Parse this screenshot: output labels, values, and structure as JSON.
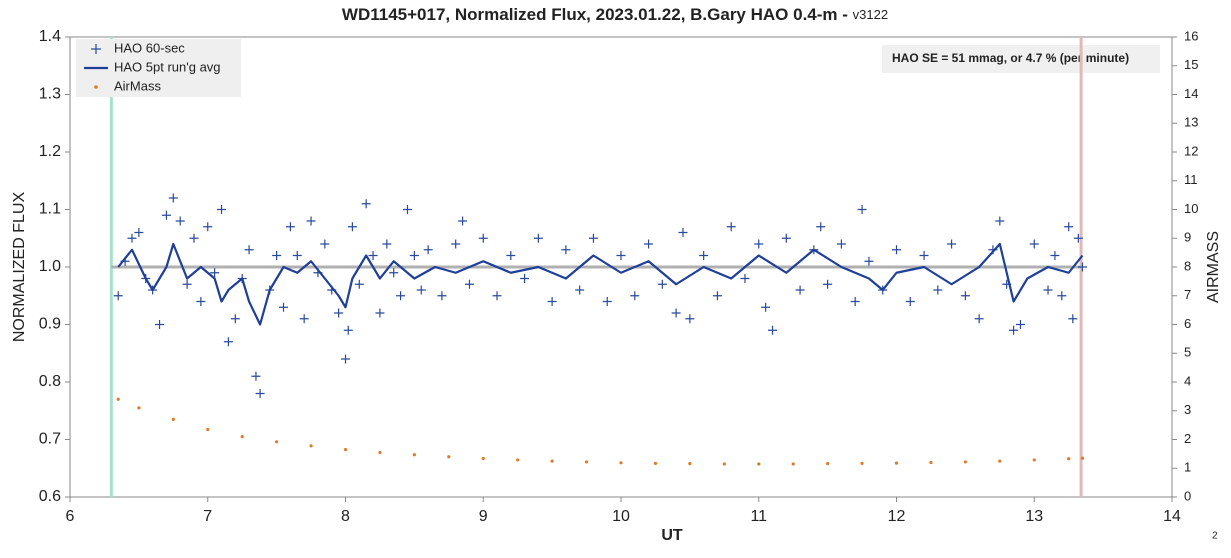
{
  "chart_data": {
    "type": "scatter",
    "title": "WD1145+017, Normalized Flux, 2023.01.22, B.Gary HAO 0.4-m - ",
    "title_version": "v3122",
    "xlabel": "UT",
    "ylabel": "NORMALIZED FLUX",
    "y2label": "AIRMASS",
    "annotation": "HAO SE =   51 mmag, or 4.7 % (per minute)",
    "page_label": "2",
    "xlim": [
      6,
      14
    ],
    "xticks": [
      6,
      7,
      8,
      9,
      10,
      11,
      12,
      13,
      14
    ],
    "ylim": [
      0.6,
      1.4
    ],
    "yticks": [
      0.6,
      0.7,
      0.8,
      0.9,
      {
        "value": 1,
        "label": "1.0"
      },
      1.1,
      1.2,
      1.3,
      1.4
    ],
    "y2lim": [
      0,
      16
    ],
    "y2ticks": [
      0,
      1,
      2,
      3,
      4,
      5,
      6,
      7,
      8,
      9,
      10,
      11,
      12,
      13,
      14,
      15,
      16
    ],
    "legend": "upper left",
    "reference_line": {
      "y": 1,
      "color": "#b0b0b0"
    },
    "vlines": [
      {
        "x": 6.3,
        "color": "#a8e0d0"
      },
      {
        "x": 13.34,
        "color": "#e0b8b8"
      }
    ],
    "series": [
      {
        "name": "HAO 60-sec",
        "kind": "plus",
        "color": "#2a4b9b",
        "x": [
          6.35,
          6.4,
          6.45,
          6.5,
          6.55,
          6.6,
          6.65,
          6.7,
          6.75,
          6.8,
          6.85,
          6.9,
          6.95,
          7.0,
          7.05,
          7.1,
          7.15,
          7.2,
          7.25,
          7.3,
          7.35,
          7.38,
          7.45,
          7.5,
          7.55,
          7.6,
          7.65,
          7.7,
          7.75,
          7.8,
          7.85,
          7.9,
          7.95,
          8.0,
          8.02,
          8.05,
          8.1,
          8.15,
          8.2,
          8.25,
          8.3,
          8.35,
          8.4,
          8.45,
          8.5,
          8.55,
          8.6,
          8.7,
          8.8,
          8.85,
          8.9,
          9.0,
          9.1,
          9.2,
          9.3,
          9.4,
          9.5,
          9.6,
          9.7,
          9.8,
          9.9,
          10.0,
          10.1,
          10.2,
          10.3,
          10.4,
          10.45,
          10.5,
          10.6,
          10.7,
          10.8,
          10.9,
          11.0,
          11.05,
          11.1,
          11.2,
          11.3,
          11.4,
          11.45,
          11.5,
          11.6,
          11.7,
          11.75,
          11.8,
          11.9,
          12.0,
          12.1,
          12.2,
          12.3,
          12.4,
          12.5,
          12.6,
          12.7,
          12.75,
          12.8,
          12.85,
          12.9,
          13.0,
          13.1,
          13.15,
          13.2,
          13.25,
          13.28,
          13.32,
          13.35
        ],
        "values": [
          0.95,
          1.01,
          1.05,
          1.06,
          0.98,
          0.96,
          0.9,
          1.09,
          1.12,
          1.08,
          0.97,
          1.05,
          0.94,
          1.07,
          0.99,
          1.1,
          0.87,
          0.91,
          0.98,
          1.03,
          0.81,
          0.78,
          0.96,
          1.02,
          0.93,
          1.07,
          1.02,
          0.91,
          1.08,
          0.99,
          1.04,
          0.96,
          0.92,
          0.84,
          0.89,
          1.07,
          0.97,
          1.11,
          1.02,
          0.92,
          1.04,
          0.99,
          0.95,
          1.1,
          1.02,
          0.96,
          1.03,
          0.95,
          1.04,
          1.08,
          0.97,
          1.05,
          0.95,
          1.02,
          0.98,
          1.05,
          0.94,
          1.03,
          0.96,
          1.05,
          0.94,
          1.02,
          0.95,
          1.04,
          0.97,
          0.92,
          1.06,
          0.91,
          1.02,
          0.95,
          1.07,
          0.98,
          1.04,
          0.93,
          0.89,
          1.05,
          0.96,
          1.03,
          1.07,
          0.97,
          1.04,
          0.94,
          1.1,
          1.01,
          0.96,
          1.03,
          0.94,
          1.02,
          0.96,
          1.04,
          0.95,
          0.91,
          1.03,
          1.08,
          0.97,
          0.89,
          0.9,
          1.04,
          0.96,
          1.02,
          0.95,
          1.07,
          0.91,
          1.05,
          1.0
        ]
      },
      {
        "name": "HAO 5pt run'g avg",
        "kind": "line",
        "color": "#1f3f99",
        "x": [
          6.35,
          6.45,
          6.55,
          6.6,
          6.7,
          6.75,
          6.85,
          6.95,
          7.05,
          7.1,
          7.15,
          7.25,
          7.3,
          7.38,
          7.45,
          7.55,
          7.65,
          7.75,
          7.85,
          7.95,
          8.0,
          8.05,
          8.15,
          8.25,
          8.35,
          8.5,
          8.65,
          8.8,
          9.0,
          9.2,
          9.4,
          9.6,
          9.8,
          10.0,
          10.2,
          10.4,
          10.6,
          10.8,
          11.0,
          11.2,
          11.4,
          11.6,
          11.8,
          11.9,
          12.0,
          12.2,
          12.4,
          12.6,
          12.75,
          12.85,
          12.95,
          13.1,
          13.25,
          13.35
        ],
        "values": [
          1.0,
          1.03,
          0.98,
          0.96,
          1.0,
          1.04,
          0.98,
          1.0,
          0.98,
          0.94,
          0.96,
          0.98,
          0.94,
          0.9,
          0.96,
          1.0,
          0.99,
          1.01,
          0.98,
          0.95,
          0.93,
          0.98,
          1.02,
          0.98,
          1.01,
          0.98,
          1.0,
          0.99,
          1.01,
          0.99,
          1.0,
          0.98,
          1.02,
          0.99,
          1.01,
          0.97,
          1.0,
          0.98,
          1.02,
          0.99,
          1.03,
          1.0,
          0.98,
          0.96,
          0.99,
          1.0,
          0.97,
          1.0,
          1.04,
          0.94,
          0.98,
          1.0,
          0.99,
          1.02
        ]
      },
      {
        "name": "AirMass",
        "kind": "dots",
        "color": "#e07a2a",
        "axis": "y2",
        "x": [
          6.35,
          6.5,
          6.75,
          7,
          7.25,
          7.5,
          7.75,
          8,
          8.25,
          8.5,
          8.75,
          9,
          9.25,
          9.5,
          9.75,
          10,
          10.25,
          10.5,
          10.75,
          11,
          11.25,
          11.5,
          11.75,
          12,
          12.25,
          12.5,
          12.75,
          13,
          13.25,
          13.35
        ],
        "values": [
          3.4,
          3.1,
          2.7,
          2.35,
          2.1,
          1.92,
          1.78,
          1.65,
          1.55,
          1.47,
          1.4,
          1.34,
          1.29,
          1.25,
          1.22,
          1.19,
          1.17,
          1.16,
          1.15,
          1.15,
          1.15,
          1.16,
          1.17,
          1.18,
          1.2,
          1.22,
          1.25,
          1.29,
          1.33,
          1.35
        ]
      }
    ]
  }
}
